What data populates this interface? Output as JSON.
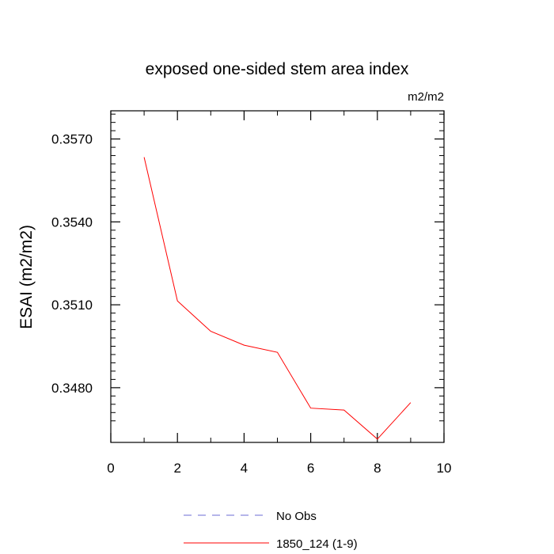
{
  "chart_data": {
    "type": "line",
    "title": "exposed one-sided stem area index",
    "units_label": "m2/m2",
    "ylabel": "ESAI  (m2/m2)",
    "xlabel": "",
    "xlim": [
      0,
      10
    ],
    "ylim": [
      0.34602,
      0.35802
    ],
    "x_ticks": [
      0,
      2,
      4,
      6,
      8,
      10
    ],
    "x_tick_labels": [
      "0",
      "2",
      "4",
      "6",
      "8",
      "10"
    ],
    "x_minor_ticks": [
      1,
      3,
      5,
      7,
      9
    ],
    "y_ticks": [
      0.348,
      0.351,
      0.354,
      0.357
    ],
    "y_tick_labels": [
      "0.3480",
      "0.3510",
      "0.3540",
      "0.3570"
    ],
    "y_minor_ticks": [
      0.3468,
      0.3471,
      0.3474,
      0.3477,
      0.3483,
      0.3486,
      0.3489,
      0.3492,
      0.3495,
      0.3498,
      0.3501,
      0.3504,
      0.3507,
      0.3513,
      0.3516,
      0.3519,
      0.3522,
      0.3525,
      0.3528,
      0.3531,
      0.3534,
      0.3537,
      0.3543,
      0.3546,
      0.3549,
      0.3552,
      0.3555,
      0.3558,
      0.3561,
      0.3564,
      0.3567,
      0.3573,
      0.3576,
      0.3579
    ],
    "grid": false,
    "legend_position": "bottom",
    "series": [
      {
        "name": "No Obs",
        "color": "#6b6bd6",
        "dash": "dashed",
        "x": [],
        "values": []
      },
      {
        "name": "1850_124 (1-9)",
        "color": "#ff0000",
        "dash": "solid",
        "x": [
          1,
          2,
          3,
          4,
          5,
          6,
          7,
          8,
          9
        ],
        "values": [
          0.35634,
          0.35114,
          0.35004,
          0.34954,
          0.34928,
          0.34726,
          0.34719,
          0.34614,
          0.34746
        ]
      }
    ]
  }
}
